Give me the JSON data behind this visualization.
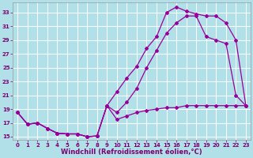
{
  "xlabel": "Windchill (Refroidissement éolien,°C)",
  "bg_color": "#b2e0e8",
  "grid_color": "#ffffff",
  "line_color": "#990099",
  "xlim": [
    -0.5,
    23.5
  ],
  "ylim": [
    14.5,
    34.5
  ],
  "xticks": [
    0,
    1,
    2,
    3,
    4,
    5,
    6,
    7,
    8,
    9,
    10,
    11,
    12,
    13,
    14,
    15,
    16,
    17,
    18,
    19,
    20,
    21,
    22,
    23
  ],
  "yticks": [
    15,
    17,
    19,
    21,
    23,
    25,
    27,
    29,
    31,
    33
  ],
  "line1_x": [
    0,
    1,
    2,
    3,
    4,
    5,
    6,
    7,
    8,
    9,
    10,
    11,
    12,
    13,
    14,
    15,
    16,
    17,
    18,
    19,
    20,
    21,
    22,
    23
  ],
  "line1_y": [
    18.5,
    16.8,
    17.0,
    16.2,
    15.5,
    15.4,
    15.4,
    15.0,
    15.1,
    19.5,
    21.5,
    23.5,
    25.2,
    27.8,
    29.5,
    33.0,
    33.8,
    33.2,
    32.8,
    32.5,
    32.5,
    31.5,
    29.0,
    19.5
  ],
  "line2_x": [
    0,
    1,
    2,
    3,
    4,
    5,
    6,
    7,
    8,
    9,
    10,
    11,
    12,
    13,
    14,
    15,
    16,
    17,
    18,
    19,
    20,
    21,
    22,
    23
  ],
  "line2_y": [
    18.5,
    16.8,
    17.0,
    16.2,
    15.5,
    15.4,
    15.4,
    15.0,
    15.1,
    19.5,
    18.5,
    20.0,
    22.0,
    25.0,
    27.5,
    30.0,
    31.5,
    32.5,
    32.5,
    29.5,
    29.0,
    28.5,
    21.0,
    19.5
  ],
  "line3_x": [
    0,
    1,
    2,
    3,
    4,
    5,
    6,
    7,
    8,
    9,
    10,
    11,
    12,
    13,
    14,
    15,
    16,
    17,
    18,
    19,
    20,
    21,
    22,
    23
  ],
  "line3_y": [
    18.5,
    16.8,
    17.0,
    16.2,
    15.5,
    15.4,
    15.4,
    15.0,
    15.1,
    19.5,
    17.5,
    18.0,
    18.5,
    18.8,
    19.0,
    19.2,
    19.2,
    19.5,
    19.5,
    19.5,
    19.5,
    19.5,
    19.5,
    19.5
  ],
  "marker": "D",
  "marker_size": 2.0,
  "linewidth": 0.9,
  "font_color": "#7b0070",
  "tick_fontsize": 5.0,
  "label_fontsize": 6.0
}
